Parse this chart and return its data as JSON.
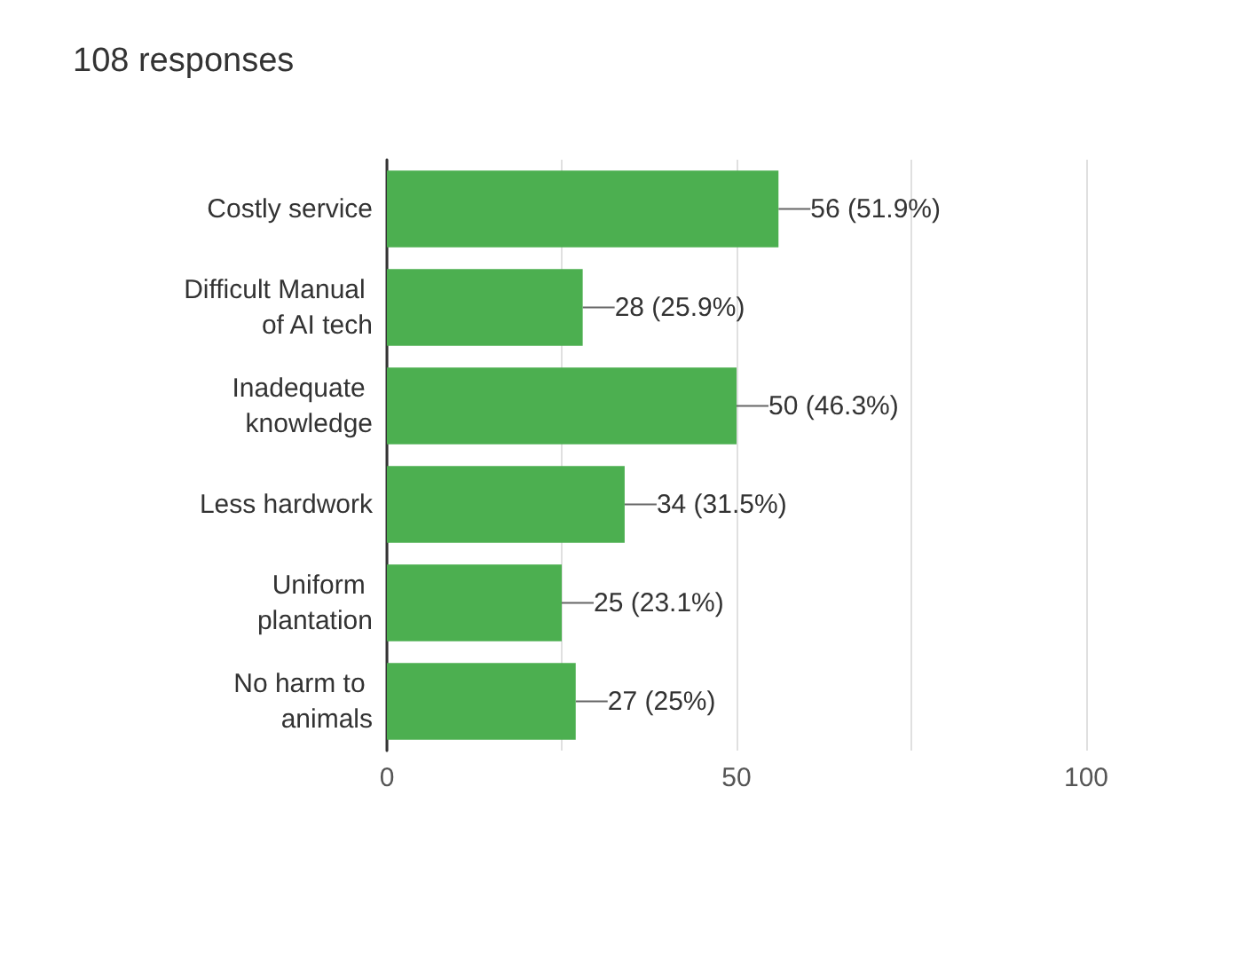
{
  "chart_data": {
    "type": "bar",
    "orientation": "horizontal",
    "title": "108 responses",
    "categories": [
      "Costly service",
      "Difficult Manual of AI tech",
      "Inadequate knowledge",
      "Less hardwork",
      "Uniform plantation",
      "No harm to animals"
    ],
    "values": [
      56,
      28,
      50,
      34,
      25,
      27
    ],
    "value_labels": [
      "56 (51.9%)",
      "28 (25.9%)",
      "50 (46.3%)",
      "34 (31.5%)",
      "25 (23.1%)",
      "27 (25%)"
    ],
    "color": "#4caf50",
    "xlim": [
      0,
      100
    ],
    "xticks": [
      0,
      {
        "value": 25,
        "label": null
      },
      50,
      {
        "value": 75,
        "label": null
      },
      100
    ],
    "grid": "x"
  }
}
